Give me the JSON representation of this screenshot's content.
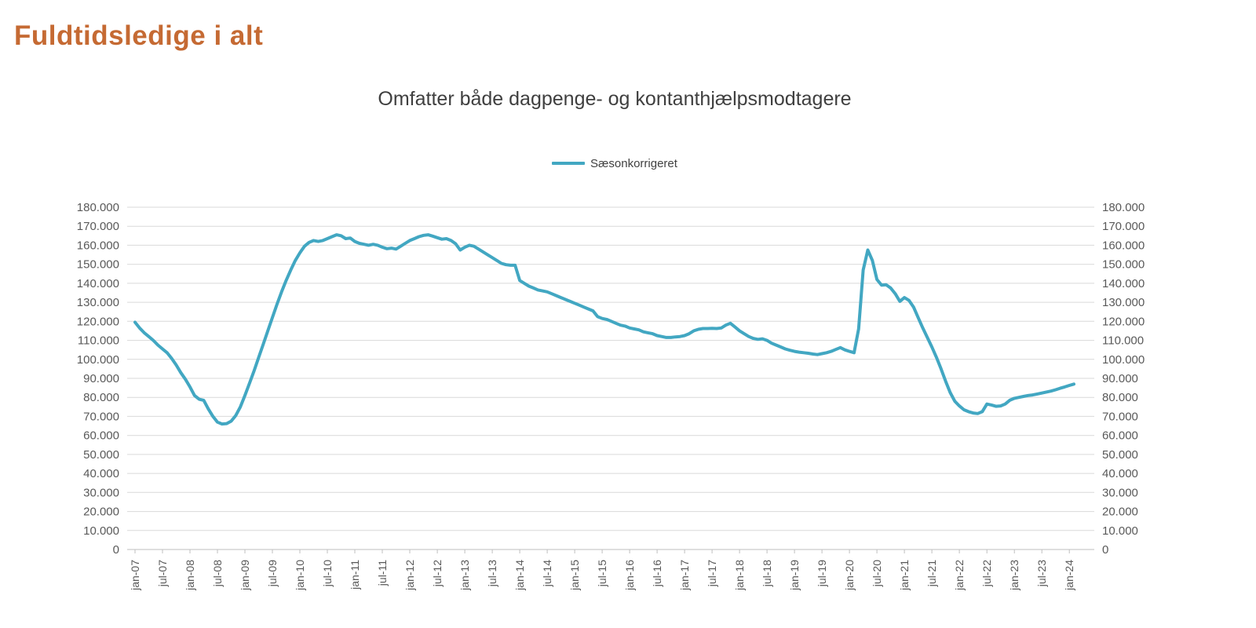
{
  "header": {
    "title": "Fuldtidsledige i alt"
  },
  "chart": {
    "subtitle": "Omfatter både dagpenge- og kontanthjælpsmodtagere",
    "legend_label": "Sæsonkorrigeret"
  },
  "colors": {
    "accent_title": "#C56A33",
    "subtitle_text": "#3F3F3F",
    "line": "#42A7C2",
    "gridline": "#D9D9D9",
    "axis": "#BFBFBF",
    "tick_text": "#595959"
  },
  "chart_data": {
    "type": "line",
    "title": "Omfatter både dagpenge- og kontanthjælpsmodtagere",
    "page_heading": "Fuldtidsledige i alt",
    "legend_position": "top-center",
    "grid": "horizontal",
    "dual_y_axis": true,
    "x_unit": "month",
    "x_range": [
      "jan-07",
      "feb-24"
    ],
    "x_tick_interval_months": 6,
    "x_tick_labels": [
      "jan-07",
      "jul-07",
      "jan-08",
      "jul-08",
      "jan-09",
      "jul-09",
      "jan-10",
      "jul-10",
      "jan-11",
      "jul-11",
      "jan-12",
      "jul-12",
      "jan-13",
      "jul-13",
      "jan-14",
      "jul-14",
      "jan-15",
      "jul-15",
      "jan-16",
      "jul-16",
      "jan-17",
      "jul-17",
      "jan-18",
      "jul-18",
      "jan-19",
      "jul-19",
      "jan-20",
      "jul-20",
      "jan-21",
      "jul-21",
      "jan-22",
      "jul-22",
      "jan-23",
      "jul-23",
      "jan-24"
    ],
    "ylim": [
      0,
      180000
    ],
    "y_tick_step": 10000,
    "y_tick_labels": [
      "0",
      "10.000",
      "20.000",
      "30.000",
      "40.000",
      "50.000",
      "60.000",
      "70.000",
      "80.000",
      "90.000",
      "100.000",
      "110.000",
      "120.000",
      "130.000",
      "140.000",
      "150.000",
      "160.000",
      "170.000",
      "180.000"
    ],
    "series": [
      {
        "name": "Sæsonkorrigeret",
        "color": "#42A7C2",
        "start": "jan-07",
        "values": [
          119500,
          116500,
          114000,
          112000,
          110000,
          107500,
          105500,
          103500,
          100500,
          97000,
          93000,
          89500,
          85500,
          81000,
          79000,
          78500,
          74000,
          70000,
          67000,
          66000,
          66200,
          67500,
          70500,
          75000,
          81000,
          87500,
          94000,
          101000,
          108000,
          115000,
          122000,
          129000,
          135500,
          141500,
          147000,
          152000,
          156000,
          159500,
          161500,
          162500,
          162000,
          162500,
          163500,
          164500,
          165500,
          165000,
          163500,
          163800,
          162000,
          161000,
          160500,
          160000,
          160500,
          160000,
          159000,
          158200,
          158500,
          158000,
          159500,
          161000,
          162500,
          163500,
          164500,
          165200,
          165500,
          164800,
          164000,
          163200,
          163500,
          162500,
          160800,
          157500,
          159000,
          160000,
          159500,
          158000,
          156500,
          155000,
          153500,
          152000,
          150500,
          149800,
          149500,
          149500,
          141500,
          140000,
          138500,
          137500,
          136500,
          136000,
          135500,
          134500,
          133500,
          132500,
          131500,
          130500,
          129500,
          128500,
          127500,
          126500,
          125500,
          122500,
          121500,
          121000,
          120000,
          119000,
          118000,
          117500,
          116500,
          116000,
          115500,
          114500,
          114000,
          113500,
          112500,
          112000,
          111500,
          111500,
          111800,
          112000,
          112500,
          113500,
          115000,
          115800,
          116200,
          116200,
          116300,
          116200,
          116500,
          118000,
          119000,
          117000,
          115000,
          113500,
          112000,
          111000,
          110500,
          110800,
          110000,
          108500,
          107500,
          106500,
          105500,
          104800,
          104200,
          103800,
          103500,
          103200,
          102800,
          102500,
          103000,
          103500,
          104200,
          105200,
          106200,
          105000,
          104200,
          103500,
          116000,
          147000,
          157500,
          152000,
          142000,
          139000,
          139200,
          137500,
          134500,
          130500,
          132500,
          131000,
          127500,
          122000,
          116500,
          111500,
          106500,
          101000,
          95000,
          88500,
          82500,
          78000,
          75500,
          73500,
          72500,
          71800,
          71500,
          72500,
          76500,
          76000,
          75300,
          75500,
          76500,
          78500,
          79500,
          80000,
          80500,
          81000,
          81300,
          81800,
          82300,
          82800,
          83300,
          84000,
          84800,
          85500,
          86300,
          87000
        ]
      }
    ]
  }
}
